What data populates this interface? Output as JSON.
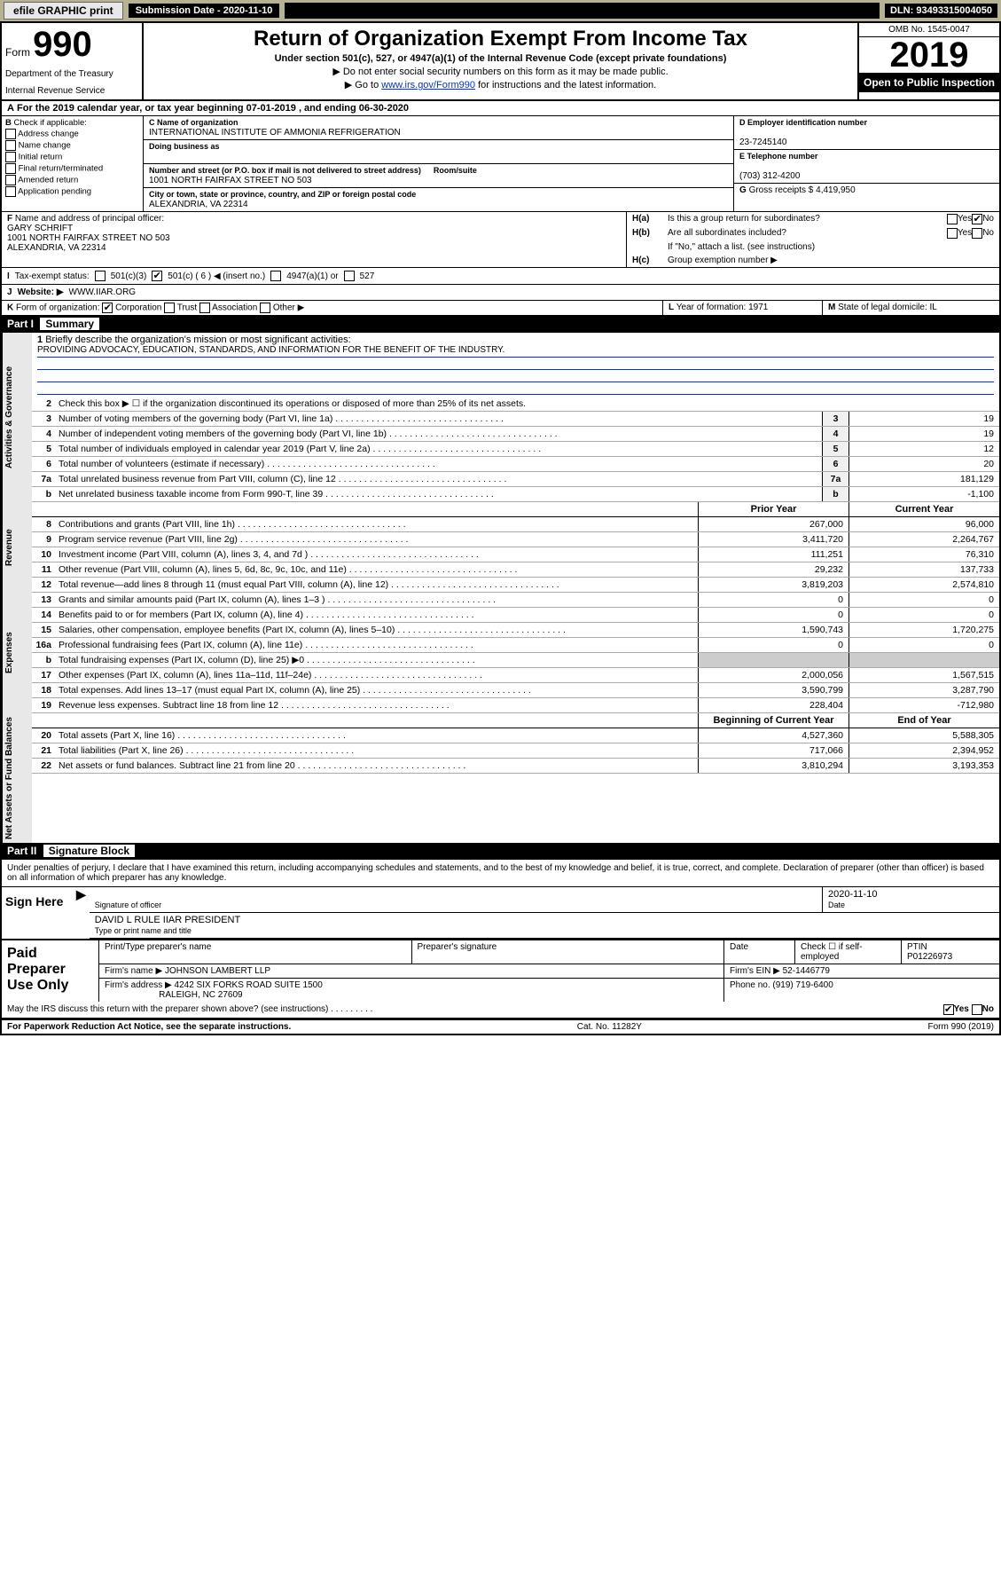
{
  "topbar": {
    "efile": "efile GRAPHIC print",
    "subdate_label": "Submission Date - 2020-11-10",
    "dln": "DLN: 93493315004050"
  },
  "header": {
    "form": "Form",
    "num": "990",
    "dept": "Department of the Treasury",
    "irs": "Internal Revenue Service",
    "title": "Return of Organization Exempt From Income Tax",
    "sub1": "Under section 501(c), 527, or 4947(a)(1) of the Internal Revenue Code (except private foundations)",
    "sub2": "▶ Do not enter social security numbers on this form as it may be made public.",
    "sub3_pre": "▶ Go to ",
    "sub3_link": "www.irs.gov/Form990",
    "sub3_post": " for instructions and the latest information.",
    "omb": "OMB No. 1545-0047",
    "year": "2019",
    "open": "Open to Public Inspection"
  },
  "period": "For the 2019 calendar year, or tax year beginning 07-01-2019    , and ending 06-30-2020",
  "boxB": {
    "label": "Check if applicable:",
    "opts": [
      "Address change",
      "Name change",
      "Initial return",
      "Final return/terminated",
      "Amended return",
      "Application pending"
    ]
  },
  "boxC": {
    "name_label": "Name of organization",
    "name": "INTERNATIONAL INSTITUTE OF AMMONIA REFRIGERATION",
    "dba_label": "Doing business as",
    "dba": "",
    "addr_label": "Number and street (or P.O. box if mail is not delivered to street address)",
    "room_label": "Room/suite",
    "addr": "1001 NORTH FAIRFAX STREET NO 503",
    "city_label": "City or town, state or province, country, and ZIP or foreign postal code",
    "city": "ALEXANDRIA, VA  22314"
  },
  "boxD": {
    "label": "Employer identification number",
    "val": "23-7245140"
  },
  "boxE": {
    "label": "Telephone number",
    "val": "(703) 312-4200"
  },
  "boxG": {
    "label": "Gross receipts $",
    "val": "4,419,950"
  },
  "boxF": {
    "label": "Name and address of principal officer:",
    "name": "GARY SCHRIFT",
    "addr1": "1001 NORTH FAIRFAX STREET NO 503",
    "addr2": "ALEXANDRIA, VA  22314"
  },
  "boxH": {
    "a": "Is this a group return for subordinates?",
    "b": "Are all subordinates included?",
    "b2": "If \"No,\" attach a list. (see instructions)",
    "c": "Group exemption number ▶"
  },
  "taxstatus": {
    "label": "Tax-exempt status:",
    "opts": [
      "501(c)(3)",
      "501(c) ( 6 ) ◀ (insert no.)",
      "4947(a)(1) or",
      "527"
    ]
  },
  "website": {
    "label": "Website: ▶",
    "val": "WWW.IIAR.ORG"
  },
  "korg": {
    "label": "Form of organization:",
    "opts": [
      "Corporation",
      "Trust",
      "Association",
      "Other ▶"
    ],
    "year_label": "Year of formation:",
    "year": "1971",
    "state_label": "State of legal domicile:",
    "state": "IL"
  },
  "part1": {
    "title": "Part I",
    "name": "Summary",
    "mission_label": "Briefly describe the organization's mission or most significant activities:",
    "mission": "PROVIDING ADVOCACY, EDUCATION, STANDARDS, AND INFORMATION FOR THE BENEFIT OF THE INDUSTRY.",
    "line2": "Check this box ▶ ☐  if the organization discontinued its operations or disposed of more than 25% of its net assets.",
    "side_gov": "Activities & Governance",
    "side_rev": "Revenue",
    "side_exp": "Expenses",
    "side_net": "Net Assets or Fund Balances",
    "gov_lines": [
      {
        "n": "3",
        "d": "Number of voting members of the governing body (Part VI, line 1a)",
        "v": "19"
      },
      {
        "n": "4",
        "d": "Number of independent voting members of the governing body (Part VI, line 1b)",
        "v": "19"
      },
      {
        "n": "5",
        "d": "Total number of individuals employed in calendar year 2019 (Part V, line 2a)",
        "v": "12"
      },
      {
        "n": "6",
        "d": "Total number of volunteers (estimate if necessary)",
        "v": "20"
      },
      {
        "n": "7a",
        "d": "Total unrelated business revenue from Part VIII, column (C), line 12",
        "v": "181,129"
      },
      {
        "n": "b",
        "d": "Net unrelated business taxable income from Form 990-T, line 39",
        "v": "-1,100"
      }
    ],
    "head_prior": "Prior Year",
    "head_curr": "Current Year",
    "rev_lines": [
      {
        "n": "8",
        "d": "Contributions and grants (Part VIII, line 1h)",
        "p": "267,000",
        "c": "96,000"
      },
      {
        "n": "9",
        "d": "Program service revenue (Part VIII, line 2g)",
        "p": "3,411,720",
        "c": "2,264,767"
      },
      {
        "n": "10",
        "d": "Investment income (Part VIII, column (A), lines 3, 4, and 7d )",
        "p": "111,251",
        "c": "76,310"
      },
      {
        "n": "11",
        "d": "Other revenue (Part VIII, column (A), lines 5, 6d, 8c, 9c, 10c, and 11e)",
        "p": "29,232",
        "c": "137,733"
      },
      {
        "n": "12",
        "d": "Total revenue—add lines 8 through 11 (must equal Part VIII, column (A), line 12)",
        "p": "3,819,203",
        "c": "2,574,810"
      }
    ],
    "exp_lines": [
      {
        "n": "13",
        "d": "Grants and similar amounts paid (Part IX, column (A), lines 1–3 )",
        "p": "0",
        "c": "0"
      },
      {
        "n": "14",
        "d": "Benefits paid to or for members (Part IX, column (A), line 4)",
        "p": "0",
        "c": "0"
      },
      {
        "n": "15",
        "d": "Salaries, other compensation, employee benefits (Part IX, column (A), lines 5–10)",
        "p": "1,590,743",
        "c": "1,720,275"
      },
      {
        "n": "16a",
        "d": "Professional fundraising fees (Part IX, column (A), line 11e)",
        "p": "0",
        "c": "0"
      },
      {
        "n": "b",
        "d": "Total fundraising expenses (Part IX, column (D), line 25) ▶0",
        "p": "",
        "c": "",
        "gray": true
      },
      {
        "n": "17",
        "d": "Other expenses (Part IX, column (A), lines 11a–11d, 11f–24e)",
        "p": "2,000,056",
        "c": "1,567,515"
      },
      {
        "n": "18",
        "d": "Total expenses. Add lines 13–17 (must equal Part IX, column (A), line 25)",
        "p": "3,590,799",
        "c": "3,287,790"
      },
      {
        "n": "19",
        "d": "Revenue less expenses. Subtract line 18 from line 12",
        "p": "228,404",
        "c": "-712,980"
      }
    ],
    "head_beg": "Beginning of Current Year",
    "head_end": "End of Year",
    "net_lines": [
      {
        "n": "20",
        "d": "Total assets (Part X, line 16)",
        "p": "4,527,360",
        "c": "5,588,305"
      },
      {
        "n": "21",
        "d": "Total liabilities (Part X, line 26)",
        "p": "717,066",
        "c": "2,394,952"
      },
      {
        "n": "22",
        "d": "Net assets or fund balances. Subtract line 21 from line 20",
        "p": "3,810,294",
        "c": "3,193,353"
      }
    ]
  },
  "part2": {
    "title": "Part II",
    "name": "Signature Block",
    "decl": "Under penalties of perjury, I declare that I have examined this return, including accompanying schedules and statements, and to the best of my knowledge and belief, it is true, correct, and complete. Declaration of preparer (other than officer) is based on all information of which preparer has any knowledge.",
    "sign_here": "Sign Here",
    "sig_officer": "Signature of officer",
    "sig_date": "2020-11-10",
    "date_label": "Date",
    "typed_name": "DAVID L RULE IIAR PRESIDENT",
    "typed_label": "Type or print name and title",
    "paid": "Paid Preparer Use Only",
    "prep_name_label": "Print/Type preparer's name",
    "prep_sig_label": "Preparer's signature",
    "prep_date_label": "Date",
    "self_emp": "Check ☐ if self-employed",
    "ptin_label": "PTIN",
    "ptin": "P01226973",
    "firm_name_label": "Firm's name    ▶",
    "firm_name": "JOHNSON LAMBERT LLP",
    "firm_ein_label": "Firm's EIN ▶",
    "firm_ein": "52-1446779",
    "firm_addr_label": "Firm's address ▶",
    "firm_addr1": "4242 SIX FORKS ROAD SUITE 1500",
    "firm_addr2": "RALEIGH, NC  27609",
    "phone_label": "Phone no.",
    "phone": "(919) 719-6400",
    "discuss": "May the IRS discuss this return with the preparer shown above? (see instructions)"
  },
  "footer": {
    "pra": "For Paperwork Reduction Act Notice, see the separate instructions.",
    "cat": "Cat. No. 11282Y",
    "form": "Form 990 (2019)"
  }
}
